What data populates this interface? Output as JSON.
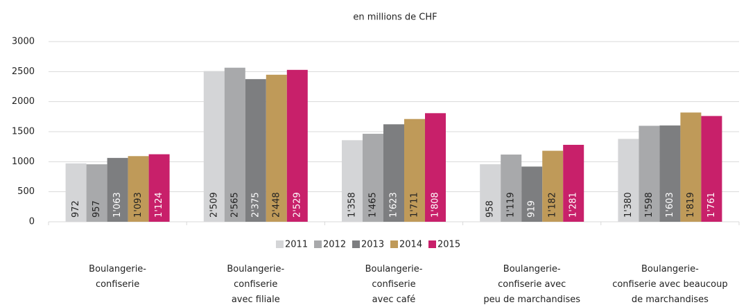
{
  "chart_data": {
    "type": "bar",
    "subtitle": "en millions de CHF",
    "categories": [
      "Boulangerie-\nconfiserie",
      "Boulangerie-\nconfiserie\navec filiale",
      "Boulangerie-\nconfiserie\navec café",
      "Boulangerie-\nconfiserie avec\npeu de marchandises",
      "Boulangerie-\nconfiserie avec beaucoup\nde marchandises"
    ],
    "series": [
      {
        "name": "2011",
        "color": "#d4d5d7",
        "values": [
          972,
          2509,
          1358,
          958,
          1380
        ],
        "value_labels": [
          "972",
          "2'509",
          "1'358",
          "958",
          "1'380"
        ]
      },
      {
        "name": "2012",
        "color": "#a8a9ab",
        "values": [
          957,
          2565,
          1465,
          1119,
          1598
        ],
        "value_labels": [
          "957",
          "2'565",
          "1'465",
          "1'119",
          "1'598"
        ]
      },
      {
        "name": "2013",
        "color": "#7d7e80",
        "values": [
          1063,
          2375,
          1623,
          919,
          1603
        ],
        "value_labels": [
          "1'063",
          "2'375",
          "1'623",
          "919",
          "1'603"
        ]
      },
      {
        "name": "2014",
        "color": "#bf9a59",
        "values": [
          1093,
          2448,
          1711,
          1182,
          1819
        ],
        "value_labels": [
          "1'093",
          "2'448",
          "1'711",
          "1'182",
          "1'819"
        ]
      },
      {
        "name": "2015",
        "color": "#c8206a",
        "values": [
          1124,
          2529,
          1808,
          1281,
          1761
        ],
        "value_labels": [
          "1'124",
          "2'529",
          "1'808",
          "1'281",
          "1'761"
        ]
      }
    ],
    "ylim": [
      0,
      3000
    ],
    "yticks": [
      0,
      500,
      1000,
      1500,
      2000,
      2500,
      3000
    ],
    "grid": true,
    "legend": "bottom"
  }
}
